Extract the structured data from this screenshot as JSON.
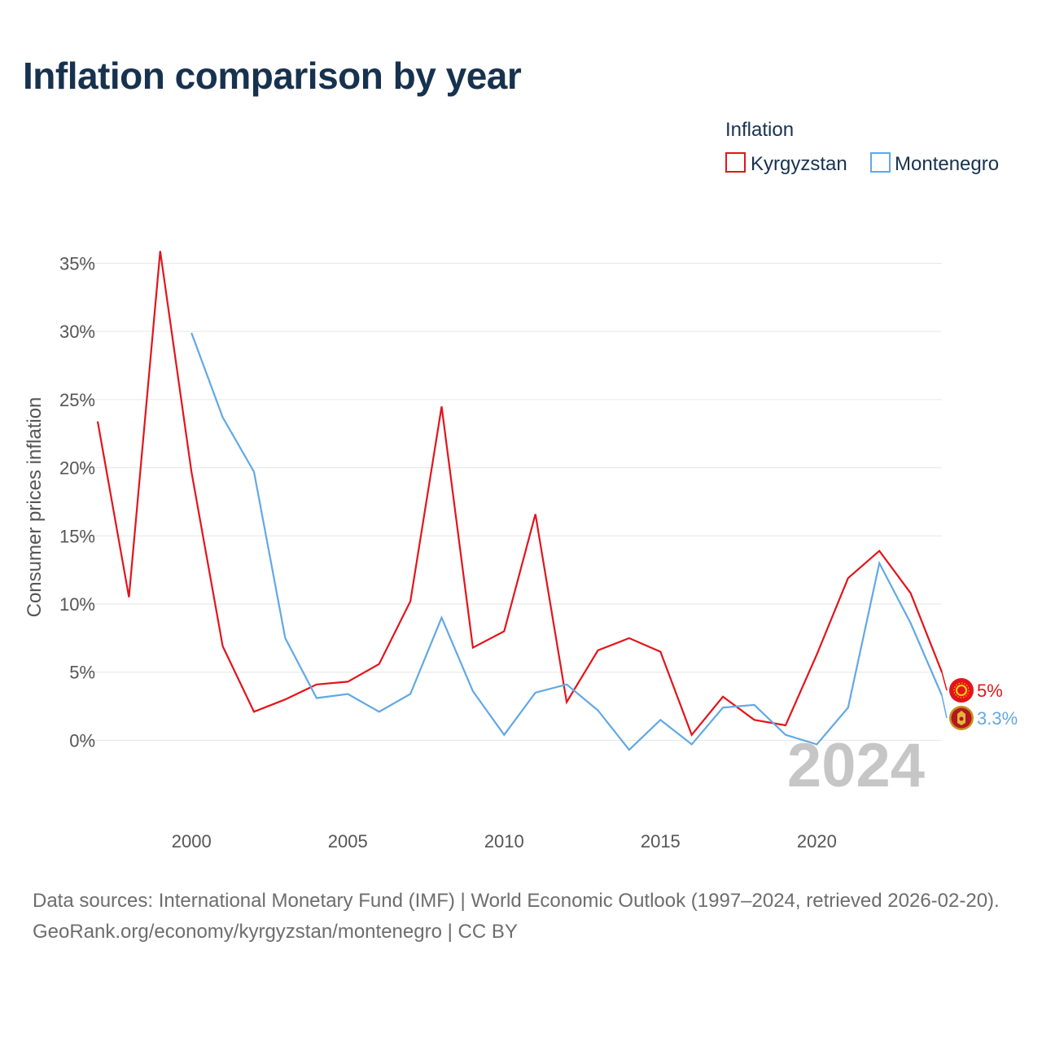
{
  "title": "Inflation comparison by year",
  "legend": {
    "title": "Inflation",
    "items": [
      {
        "label": "Kyrgyzstan",
        "color": "#e3141b"
      },
      {
        "label": "Montenegro",
        "color": "#62a8e5"
      }
    ]
  },
  "chart_data": {
    "type": "line",
    "title": "Inflation comparison by year",
    "xlabel": "",
    "ylabel": "Consumer prices inflation",
    "xlim": [
      1997,
      2024
    ],
    "ylim": [
      -3.5,
      37
    ],
    "x_ticks": [
      2000,
      2005,
      2010,
      2015,
      2020
    ],
    "y_ticks": [
      0,
      5,
      10,
      15,
      20,
      25,
      30,
      35
    ],
    "y_tick_suffix": "%",
    "grid": true,
    "legend_position": "top-right",
    "series": [
      {
        "name": "Kyrgyzstan",
        "color": "#e3141b",
        "x": [
          1997,
          1998,
          1999,
          2000,
          2001,
          2002,
          2003,
          2004,
          2005,
          2006,
          2007,
          2008,
          2009,
          2010,
          2011,
          2012,
          2013,
          2014,
          2015,
          2016,
          2017,
          2018,
          2019,
          2020,
          2021,
          2022,
          2023,
          2024
        ],
        "values": [
          23.4,
          10.5,
          35.9,
          19.7,
          6.9,
          2.1,
          3.0,
          4.1,
          4.3,
          5.6,
          10.2,
          24.5,
          6.8,
          8.0,
          16.6,
          2.8,
          6.6,
          7.5,
          6.5,
          0.4,
          3.2,
          1.5,
          1.1,
          6.3,
          11.9,
          13.9,
          10.8,
          5.0
        ],
        "end_label": "5%"
      },
      {
        "name": "Montenegro",
        "color": "#62a8e5",
        "x": [
          2000,
          2001,
          2002,
          2003,
          2004,
          2005,
          2006,
          2007,
          2008,
          2009,
          2010,
          2011,
          2012,
          2013,
          2014,
          2015,
          2016,
          2017,
          2018,
          2019,
          2020,
          2021,
          2022,
          2023,
          2024
        ],
        "values": [
          29.9,
          23.7,
          19.7,
          7.5,
          3.1,
          3.4,
          2.1,
          3.4,
          9.0,
          3.6,
          0.4,
          3.5,
          4.1,
          2.2,
          -0.7,
          1.5,
          -0.3,
          2.4,
          2.6,
          0.4,
          -0.3,
          2.4,
          13.0,
          8.6,
          3.3
        ],
        "end_label": "3.3%"
      }
    ],
    "annotation": "2024"
  },
  "footer": {
    "sources": "Data sources: International Monetary Fund (IMF) | World Economic Outlook (1997–2024, retrieved 2026-02-20).",
    "credit": "GeoRank.org/economy/kyrgyzstan/montenegro | CC BY"
  }
}
